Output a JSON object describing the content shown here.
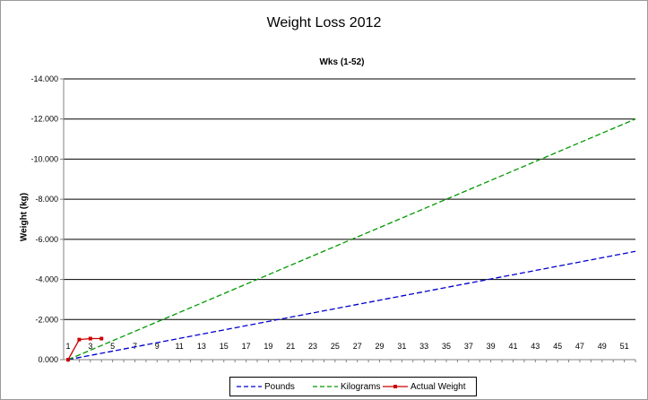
{
  "chart_data": {
    "type": "line",
    "title": "Weight Loss 2012",
    "xlabel": "Wks (1-52)",
    "ylabel": "Weight (kg)",
    "ylim": [
      0,
      -14
    ],
    "y_ticks": [
      "0.000",
      "-2.000",
      "-4.000",
      "-6.000",
      "-8.000",
      "-10.000",
      "-12.000",
      "-14.000"
    ],
    "x_ticks": [
      "1",
      "3",
      "5",
      "7",
      "9",
      "11",
      "13",
      "15",
      "17",
      "19",
      "21",
      "23",
      "25",
      "27",
      "29",
      "31",
      "33",
      "35",
      "37",
      "39",
      "41",
      "43",
      "45",
      "47",
      "49",
      "51"
    ],
    "gridlines": "horizontal",
    "legend_position": "bottom",
    "series": [
      {
        "name": "Pounds",
        "color": "#0000cc",
        "style": "dashed",
        "x": [
          1,
          52
        ],
        "y": [
          0,
          -5.4
        ]
      },
      {
        "name": "Kilograms",
        "color": "#009900",
        "style": "dashed",
        "x": [
          1,
          52
        ],
        "y": [
          0,
          -12.0
        ]
      },
      {
        "name": "Actual Weight",
        "color": "#cc0000",
        "style": "solid",
        "markers": true,
        "x": [
          1,
          2,
          3,
          4
        ],
        "y": [
          0,
          -1.0,
          -1.05,
          -1.05
        ]
      }
    ]
  }
}
